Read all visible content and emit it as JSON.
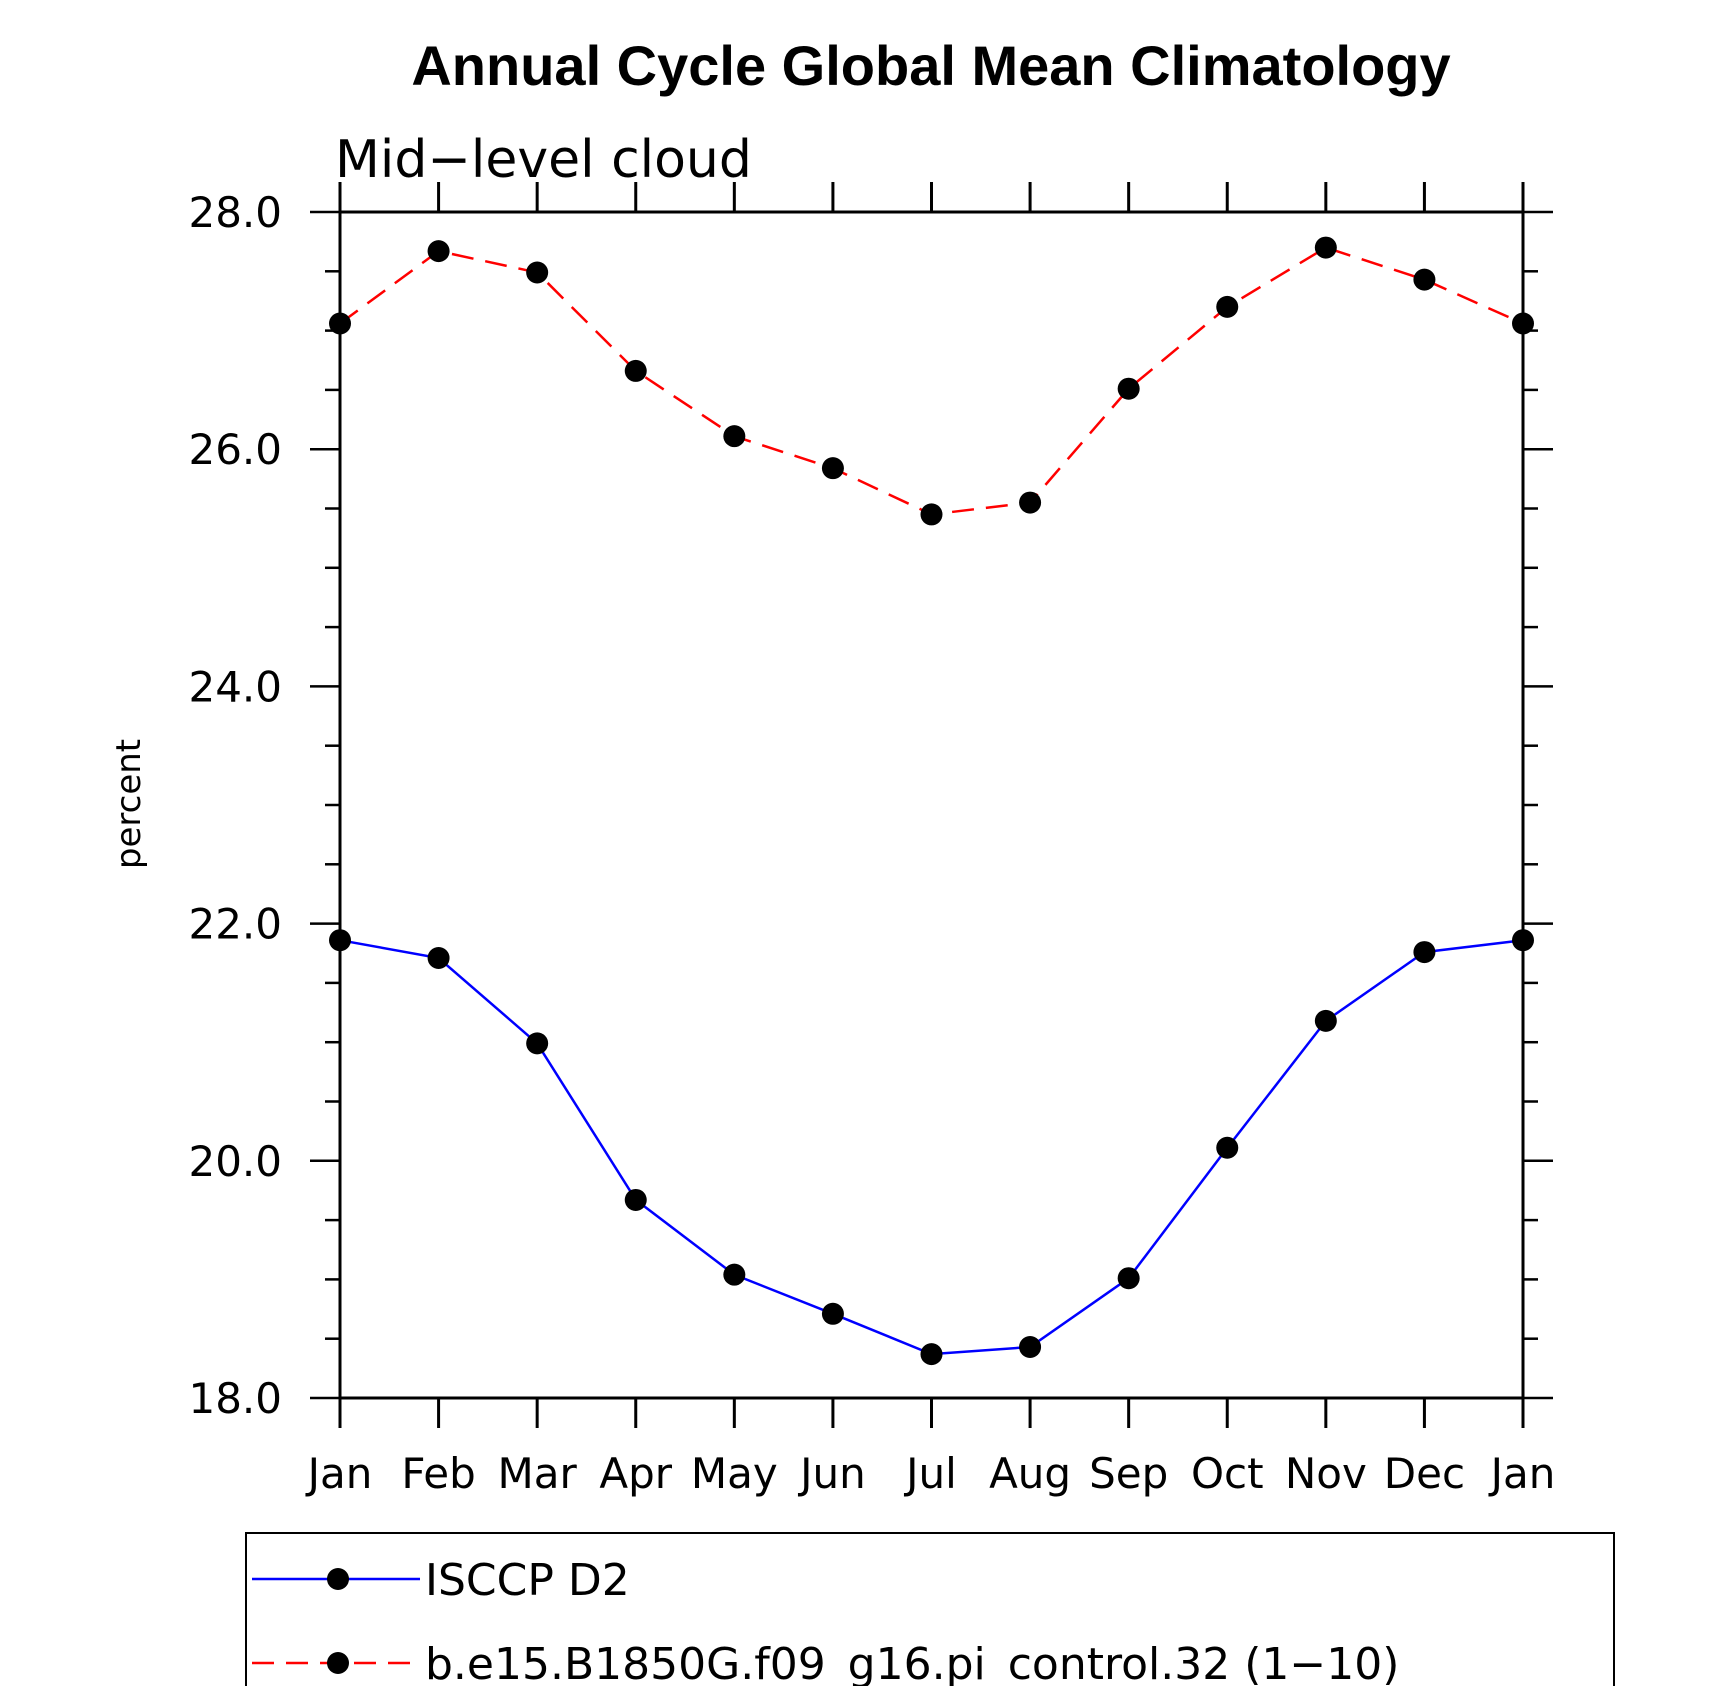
{
  "chart_data": {
    "type": "line",
    "title": "Annual Cycle Global Mean Climatology",
    "subtitle": "Mid−level cloud",
    "ylabel": "percent",
    "xlabel": "",
    "categories": [
      "Jan",
      "Feb",
      "Mar",
      "Apr",
      "May",
      "Jun",
      "Jul",
      "Aug",
      "Sep",
      "Oct",
      "Nov",
      "Dec",
      "Jan"
    ],
    "ylim": [
      18.0,
      28.0
    ],
    "y_ticks": [
      "18.0",
      "20.0",
      "22.0",
      "24.0",
      "26.0",
      "28.0"
    ],
    "grid": false,
    "legend_position": "bottom",
    "series": [
      {
        "name": "ISCCP D2",
        "color": "#0000ff",
        "line_style": "solid",
        "marker": "filled-circle",
        "values": [
          21.86,
          21.71,
          20.99,
          19.67,
          19.04,
          18.71,
          18.37,
          18.43,
          19.01,
          20.11,
          21.18,
          21.76,
          21.86
        ]
      },
      {
        "name": "b.e15.B1850G.f09_g16.pi_control.32 (1−10)",
        "color": "#ff0000",
        "line_style": "dashed",
        "marker": "filled-circle",
        "values": [
          27.06,
          27.67,
          27.49,
          26.66,
          26.11,
          25.84,
          25.45,
          25.55,
          26.51,
          27.2,
          27.7,
          27.43,
          27.06
        ]
      }
    ]
  }
}
